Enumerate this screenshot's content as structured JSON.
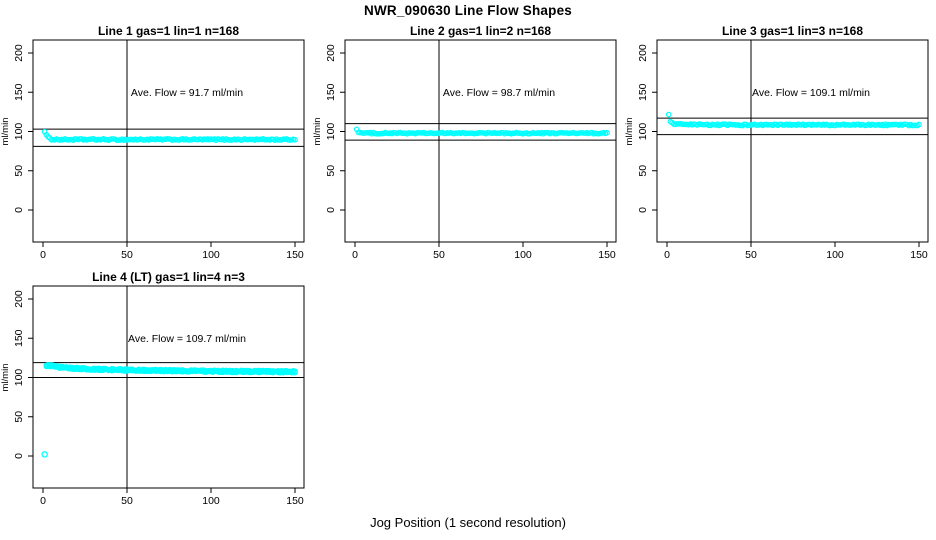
{
  "page": {
    "title": "NWR_090630  Line Flow Shapes",
    "outer_xlabel": "Jog Position (1 second resolution)"
  },
  "colors": {
    "points": "#00FFFF",
    "axis": "#000000",
    "background": "#FFFFFF",
    "text": "#000000"
  },
  "chart_data": {
    "type": "scatter",
    "suptitle": "NWR_090630  Line Flow Shapes",
    "outer_xlabel": "Jog Position (1 second resolution)",
    "layout": "2x3 grid, 4 panels used, no legend, no gridlines, full box frame",
    "xlim": [
      0,
      150
    ],
    "ylim": [
      0,
      200
    ],
    "panels": [
      {
        "title": "Line 1 gas=1 lin=1 n=168",
        "ylabel": "ml/min",
        "annotation": "Ave. Flow =  91.7  ml/min",
        "ave_flow_ml_min": 91.7,
        "n": 168,
        "marker": {
          "shape": "open-circle",
          "color": "#00FFFF"
        },
        "xticks": [
          0,
          50,
          100,
          150
        ],
        "yticks": [
          0,
          50,
          100,
          150,
          200
        ],
        "vline_x": 50,
        "hlines": [
          103,
          81
        ],
        "x_range_points": [
          1,
          150
        ],
        "band_points_sampled": [
          [
            1,
            100.5
          ],
          [
            2,
            95.5
          ],
          [
            3,
            92.5
          ],
          [
            4,
            91.0
          ],
          [
            5,
            90.3
          ],
          [
            8,
            89.8
          ],
          [
            15,
            89.7
          ],
          [
            30,
            89.8
          ],
          [
            50,
            89.7
          ],
          [
            75,
            89.8
          ],
          [
            100,
            89.7
          ],
          [
            125,
            89.8
          ],
          [
            150,
            89.7
          ]
        ],
        "jitter": 0.9,
        "passes": 1,
        "outliers": []
      },
      {
        "title": "Line 2 gas=1 lin=2 n=168",
        "ylabel": "ml/min",
        "annotation": "Ave. Flow =  98.7  ml/min",
        "ave_flow_ml_min": 98.7,
        "n": 168,
        "marker": {
          "shape": "open-circle",
          "color": "#00FFFF"
        },
        "xticks": [
          0,
          50,
          100,
          150
        ],
        "yticks": [
          0,
          50,
          100,
          150,
          200
        ],
        "vline_x": 50,
        "hlines": [
          110,
          89
        ],
        "x_range_points": [
          1,
          150
        ],
        "band_points_sampled": [
          [
            1,
            103.0
          ],
          [
            2,
            99.5
          ],
          [
            3,
            98.5
          ],
          [
            5,
            98.0
          ],
          [
            10,
            97.8
          ],
          [
            30,
            97.9
          ],
          [
            50,
            97.8
          ],
          [
            75,
            97.9
          ],
          [
            100,
            97.8
          ],
          [
            125,
            97.9
          ],
          [
            150,
            97.8
          ]
        ],
        "jitter": 0.8,
        "passes": 1,
        "outliers": []
      },
      {
        "title": "Line 3 gas=1 lin=3 n=168",
        "ylabel": "ml/min",
        "annotation": "Ave. Flow =  109.1  ml/min",
        "ave_flow_ml_min": 109.1,
        "n": 168,
        "marker": {
          "shape": "open-circle",
          "color": "#00FFFF"
        },
        "xticks": [
          0,
          50,
          100,
          150
        ],
        "yticks": [
          0,
          50,
          100,
          150,
          200
        ],
        "vline_x": 50,
        "hlines": [
          117,
          96
        ],
        "x_range_points": [
          1,
          150
        ],
        "band_points_sampled": [
          [
            1,
            121.0
          ],
          [
            2,
            113.5
          ],
          [
            3,
            110.5
          ],
          [
            5,
            109.3
          ],
          [
            10,
            108.7
          ],
          [
            30,
            108.5
          ],
          [
            50,
            108.4
          ],
          [
            75,
            108.5
          ],
          [
            100,
            108.4
          ],
          [
            125,
            108.5
          ],
          [
            150,
            108.3
          ]
        ],
        "jitter": 0.9,
        "passes": 1,
        "outliers": []
      },
      {
        "title": "Line 4 (LT) gas=1 lin=4 n=3",
        "ylabel": "ml/min",
        "annotation": "Ave. Flow =  109.7  ml/min",
        "ave_flow_ml_min": 109.7,
        "n": 3,
        "marker": {
          "shape": "open-circle",
          "color": "#00FFFF"
        },
        "xticks": [
          0,
          50,
          100,
          150
        ],
        "yticks": [
          0,
          50,
          100,
          150,
          200
        ],
        "vline_x": 50,
        "hlines": [
          119,
          100
        ],
        "x_range_points": [
          2,
          150
        ],
        "band_points_sampled": [
          [
            2,
            115.5
          ],
          [
            4,
            115.0
          ],
          [
            6,
            114.5
          ],
          [
            10,
            113.2
          ],
          [
            15,
            112.3
          ],
          [
            20,
            111.6
          ],
          [
            30,
            110.6
          ],
          [
            40,
            110.0
          ],
          [
            50,
            109.5
          ],
          [
            60,
            109.1
          ],
          [
            80,
            108.5
          ],
          [
            100,
            108.0
          ],
          [
            120,
            107.7
          ],
          [
            150,
            107.3
          ]
        ],
        "jitter": 1.3,
        "passes": 3,
        "outliers": [
          [
            1,
            2
          ]
        ]
      }
    ]
  }
}
